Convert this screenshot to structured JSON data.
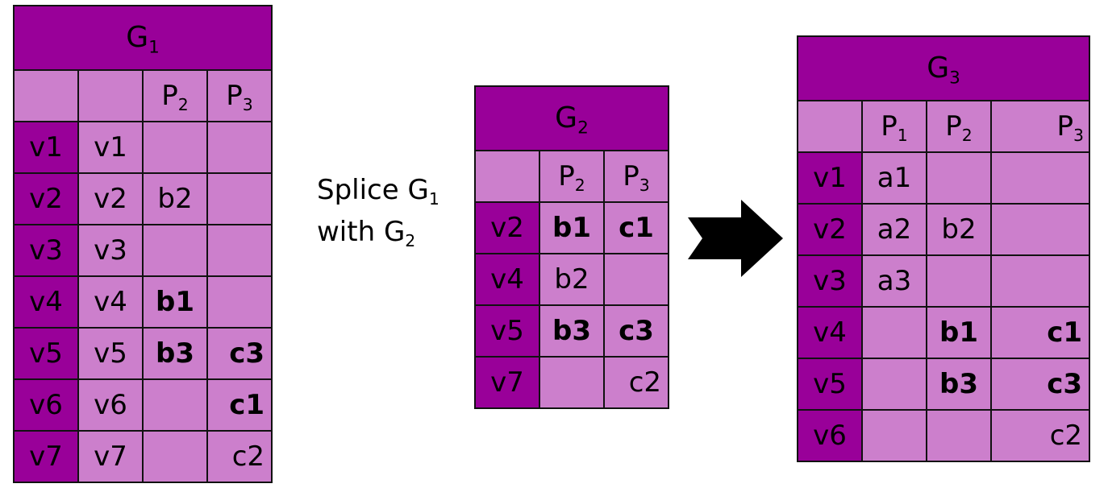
{
  "g1": {
    "title": "G",
    "title_sub": "1",
    "headers": [
      "",
      "",
      "P",
      "P"
    ],
    "header_subs": [
      "",
      "",
      "2",
      "3"
    ],
    "rows": [
      [
        "v1",
        "v1",
        "",
        ""
      ],
      [
        "v2",
        "v2",
        "b2",
        ""
      ],
      [
        "v3",
        "v3",
        "",
        ""
      ],
      [
        "v4",
        "v4",
        "b1",
        ""
      ],
      [
        "v5",
        "v5",
        "b3",
        "c3"
      ],
      [
        "v6",
        "v6",
        "",
        "c1"
      ],
      [
        "v7",
        "v7",
        "",
        "c2"
      ]
    ]
  },
  "g2": {
    "title": "G",
    "title_sub": "2",
    "headers": [
      "",
      "P",
      "P"
    ],
    "header_subs": [
      "",
      "2",
      "3"
    ],
    "rows": [
      [
        "v2",
        "b1",
        "c1"
      ],
      [
        "v4",
        "b2",
        ""
      ],
      [
        "v5",
        "b3",
        "c3"
      ],
      [
        "v7",
        "",
        "c2"
      ]
    ]
  },
  "g3": {
    "title": "G",
    "title_sub": "3",
    "headers": [
      "",
      "P",
      "P",
      "P"
    ],
    "header_subs": [
      "",
      "1",
      "2",
      "3"
    ],
    "rows": [
      [
        "v1",
        "a1",
        "",
        ""
      ],
      [
        "v2",
        "a2",
        "b2",
        ""
      ],
      [
        "v3",
        "a3",
        "",
        ""
      ],
      [
        "v4",
        "",
        "b1",
        "c1"
      ],
      [
        "v5",
        "",
        "b3",
        "c3"
      ],
      [
        "v6",
        "",
        "",
        "c2"
      ]
    ]
  },
  "splice_label": {
    "line1": "Splice G",
    "line1_sub": "1",
    "line2": "with G",
    "line2_sub": "2"
  },
  "colors": {
    "dark_purple": "#990099",
    "light_purple": "#cc7fcc",
    "arrow": "#000000"
  },
  "icons": {
    "arrow": "right-arrow-icon"
  }
}
